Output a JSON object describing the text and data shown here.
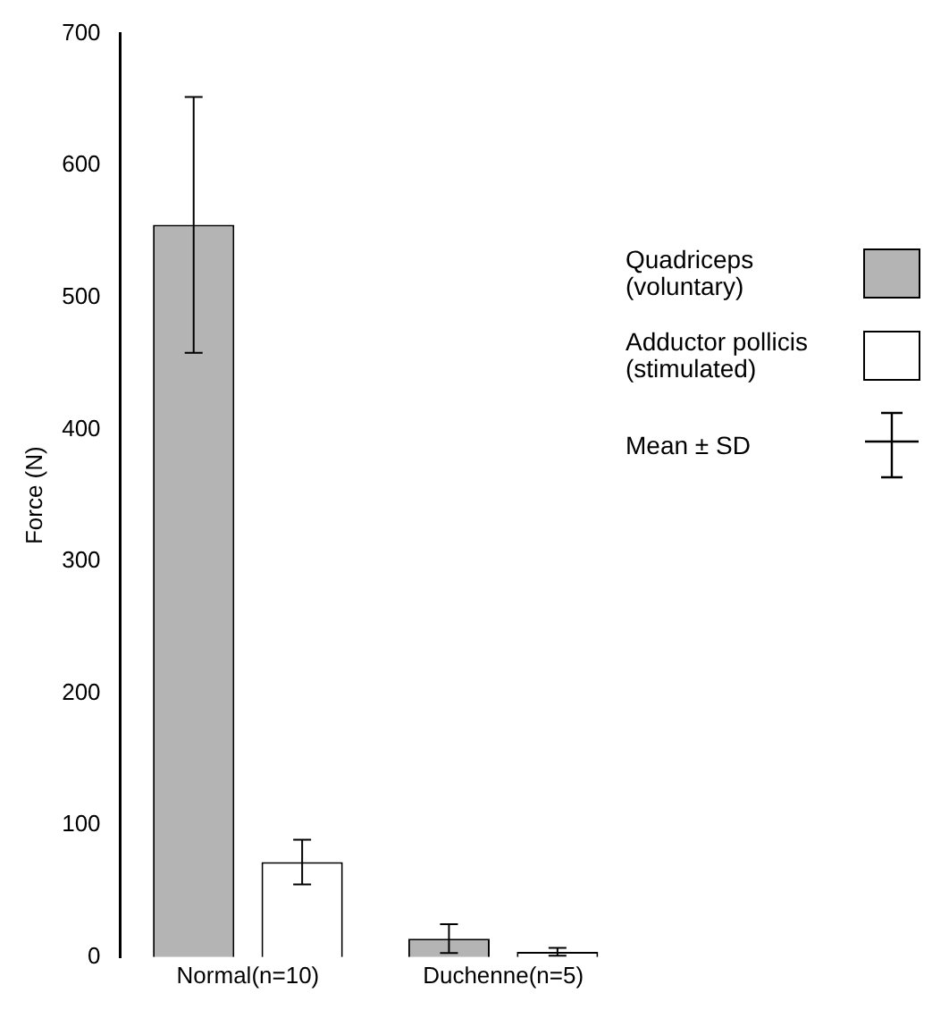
{
  "chart_data": {
    "type": "bar",
    "ylabel": "Force (N)",
    "categories": [
      "Normal(n=10)",
      "Duchenne(n=5)"
    ],
    "series": [
      {
        "name": "Quadriceps\n(voluntary)",
        "color": "#b4b4b4",
        "values": [
          555,
          14
        ],
        "errors": [
          97,
          11
        ]
      },
      {
        "name": "Adductor pollicis\n(stimulated)",
        "color": "#ffffff",
        "values": [
          72,
          4
        ],
        "errors": [
          17,
          3
        ]
      }
    ],
    "ylim": [
      0,
      700
    ],
    "yticks": [
      0,
      100,
      200,
      300,
      400,
      500,
      600,
      700
    ],
    "grid": false,
    "legend": "right",
    "annotations": [
      "Mean ± SD"
    ]
  }
}
